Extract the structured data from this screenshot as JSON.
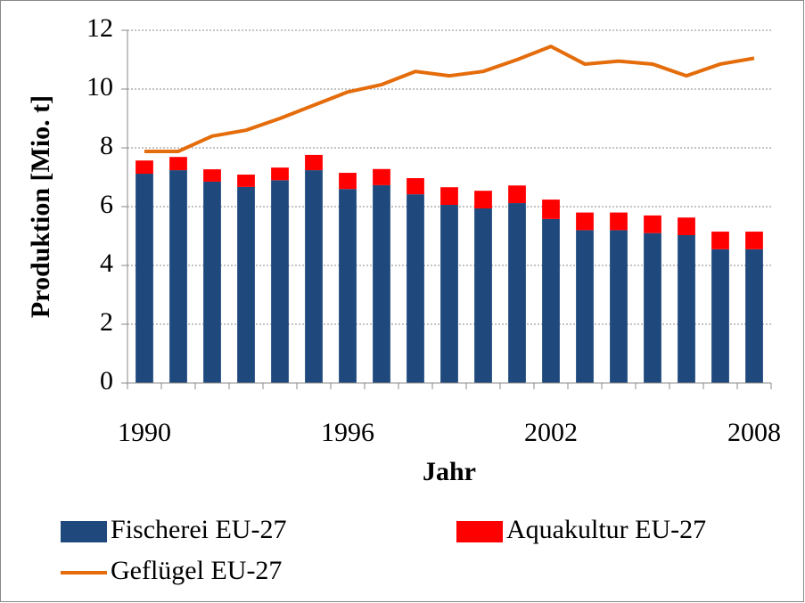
{
  "chart_data": {
    "type": "bar_line",
    "x_label": "Jahr",
    "y_label": "Produktion [Mio. t]",
    "categories": [
      "1990",
      null,
      null,
      null,
      null,
      null,
      "1996",
      null,
      null,
      null,
      null,
      null,
      "2002",
      null,
      null,
      null,
      null,
      null,
      "2008"
    ],
    "series": [
      {
        "name": "Fischerei EU-27",
        "type": "bar",
        "color": "#1f497d",
        "values": [
          7.12,
          7.24,
          6.85,
          6.67,
          6.9,
          7.24,
          6.6,
          6.73,
          6.42,
          6.06,
          5.94,
          6.12,
          5.58,
          5.2,
          5.2,
          5.1,
          5.03,
          4.55,
          4.55
        ]
      },
      {
        "name": "Aquakultur EU-27",
        "type": "bar",
        "color": "#ff0000",
        "values": [
          0.45,
          0.45,
          0.42,
          0.42,
          0.43,
          0.52,
          0.55,
          0.55,
          0.55,
          0.6,
          0.6,
          0.6,
          0.66,
          0.6,
          0.6,
          0.6,
          0.6,
          0.6,
          0.6
        ]
      },
      {
        "name": "Geflügel EU-27",
        "type": "line",
        "color": "#e46c0a",
        "values": [
          7.88,
          7.88,
          8.4,
          8.6,
          9.0,
          9.45,
          9.9,
          10.15,
          10.6,
          10.45,
          10.6,
          11.0,
          11.45,
          10.85,
          10.95,
          10.85,
          10.45,
          10.85,
          11.05
        ]
      }
    ],
    "ylim": [
      0,
      12
    ],
    "yticks": [
      0,
      2,
      4,
      6,
      8,
      10,
      12
    ],
    "grid": true,
    "stacked": true,
    "legend": "bottom"
  }
}
